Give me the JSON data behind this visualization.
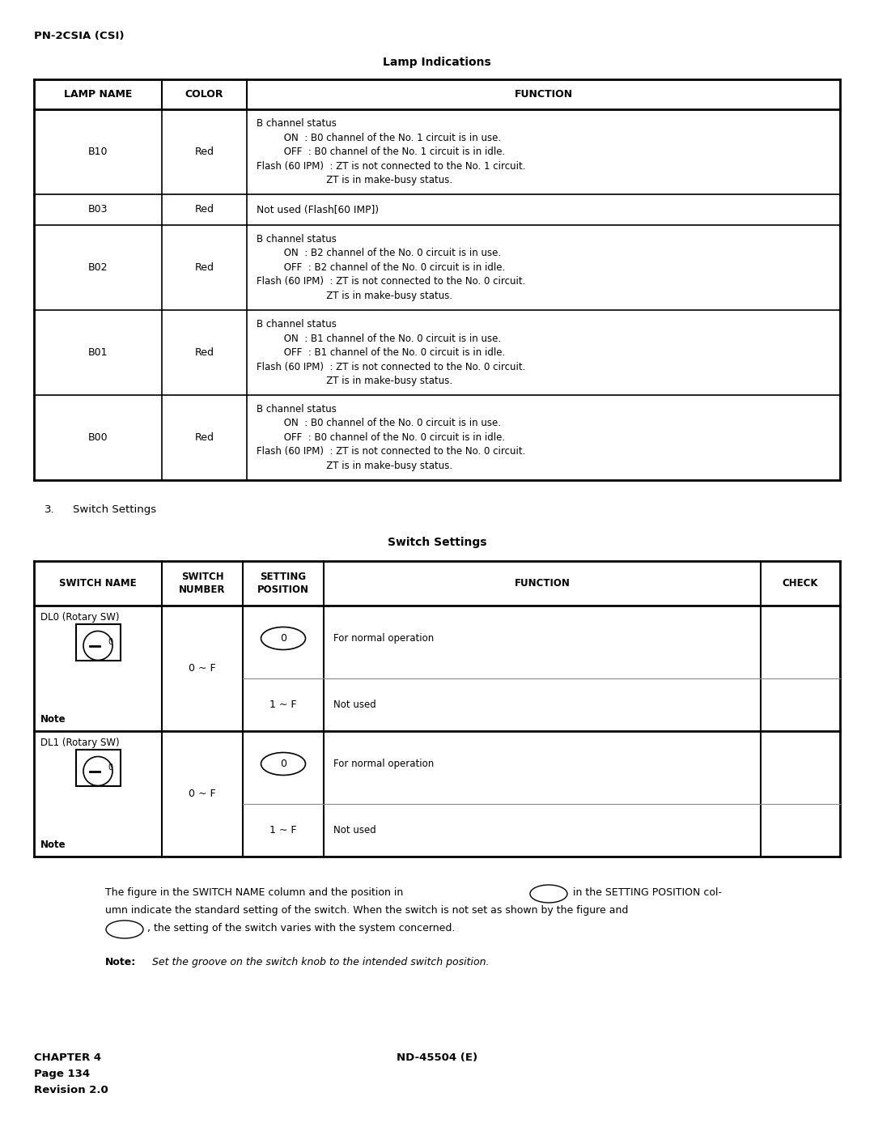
{
  "title_header": "PN-2CSIA (CSI)",
  "lamp_table_title": "Lamp Indications",
  "lamp_rows": [
    {
      "name": "B10",
      "color": "Red",
      "function": [
        "B channel status",
        "         ON  : B0 channel of the No. 1 circuit is in use.",
        "         OFF  : B0 channel of the No. 1 circuit is in idle.",
        "Flash (60 IPM)  : ZT is not connected to the No. 1 circuit.",
        "                       ZT is in make-busy status."
      ]
    },
    {
      "name": "B03",
      "color": "Red",
      "function": [
        "Not used (Flash[60 IMP])"
      ]
    },
    {
      "name": "B02",
      "color": "Red",
      "function": [
        "B channel status",
        "         ON  : B2 channel of the No. 0 circuit is in use.",
        "         OFF  : B2 channel of the No. 0 circuit is in idle.",
        "Flash (60 IPM)  : ZT is not connected to the No. 0 circuit.",
        "                       ZT is in make-busy status."
      ]
    },
    {
      "name": "B01",
      "color": "Red",
      "function": [
        "B channel status",
        "         ON  : B1 channel of the No. 0 circuit is in use.",
        "         OFF  : B1 channel of the No. 0 circuit is in idle.",
        "Flash (60 IPM)  : ZT is not connected to the No. 0 circuit.",
        "                       ZT is in make-busy status."
      ]
    },
    {
      "name": "B00",
      "color": "Red",
      "function": [
        "B channel status",
        "         ON  : B0 channel of the No. 0 circuit is in use.",
        "         OFF  : B0 channel of the No. 0 circuit is in idle.",
        "Flash (60 IPM)  : ZT is not connected to the No. 0 circuit.",
        "                       ZT is in make-busy status."
      ]
    }
  ],
  "switch_section_label": "3.",
  "switch_section_label2": "Switch Settings",
  "switch_table_title": "Switch Settings",
  "chapter": "CHAPTER 4",
  "page": "Page 134",
  "revision": "Revision 2.0",
  "nd": "ND-45504 (E)",
  "bg_color": "#ffffff"
}
